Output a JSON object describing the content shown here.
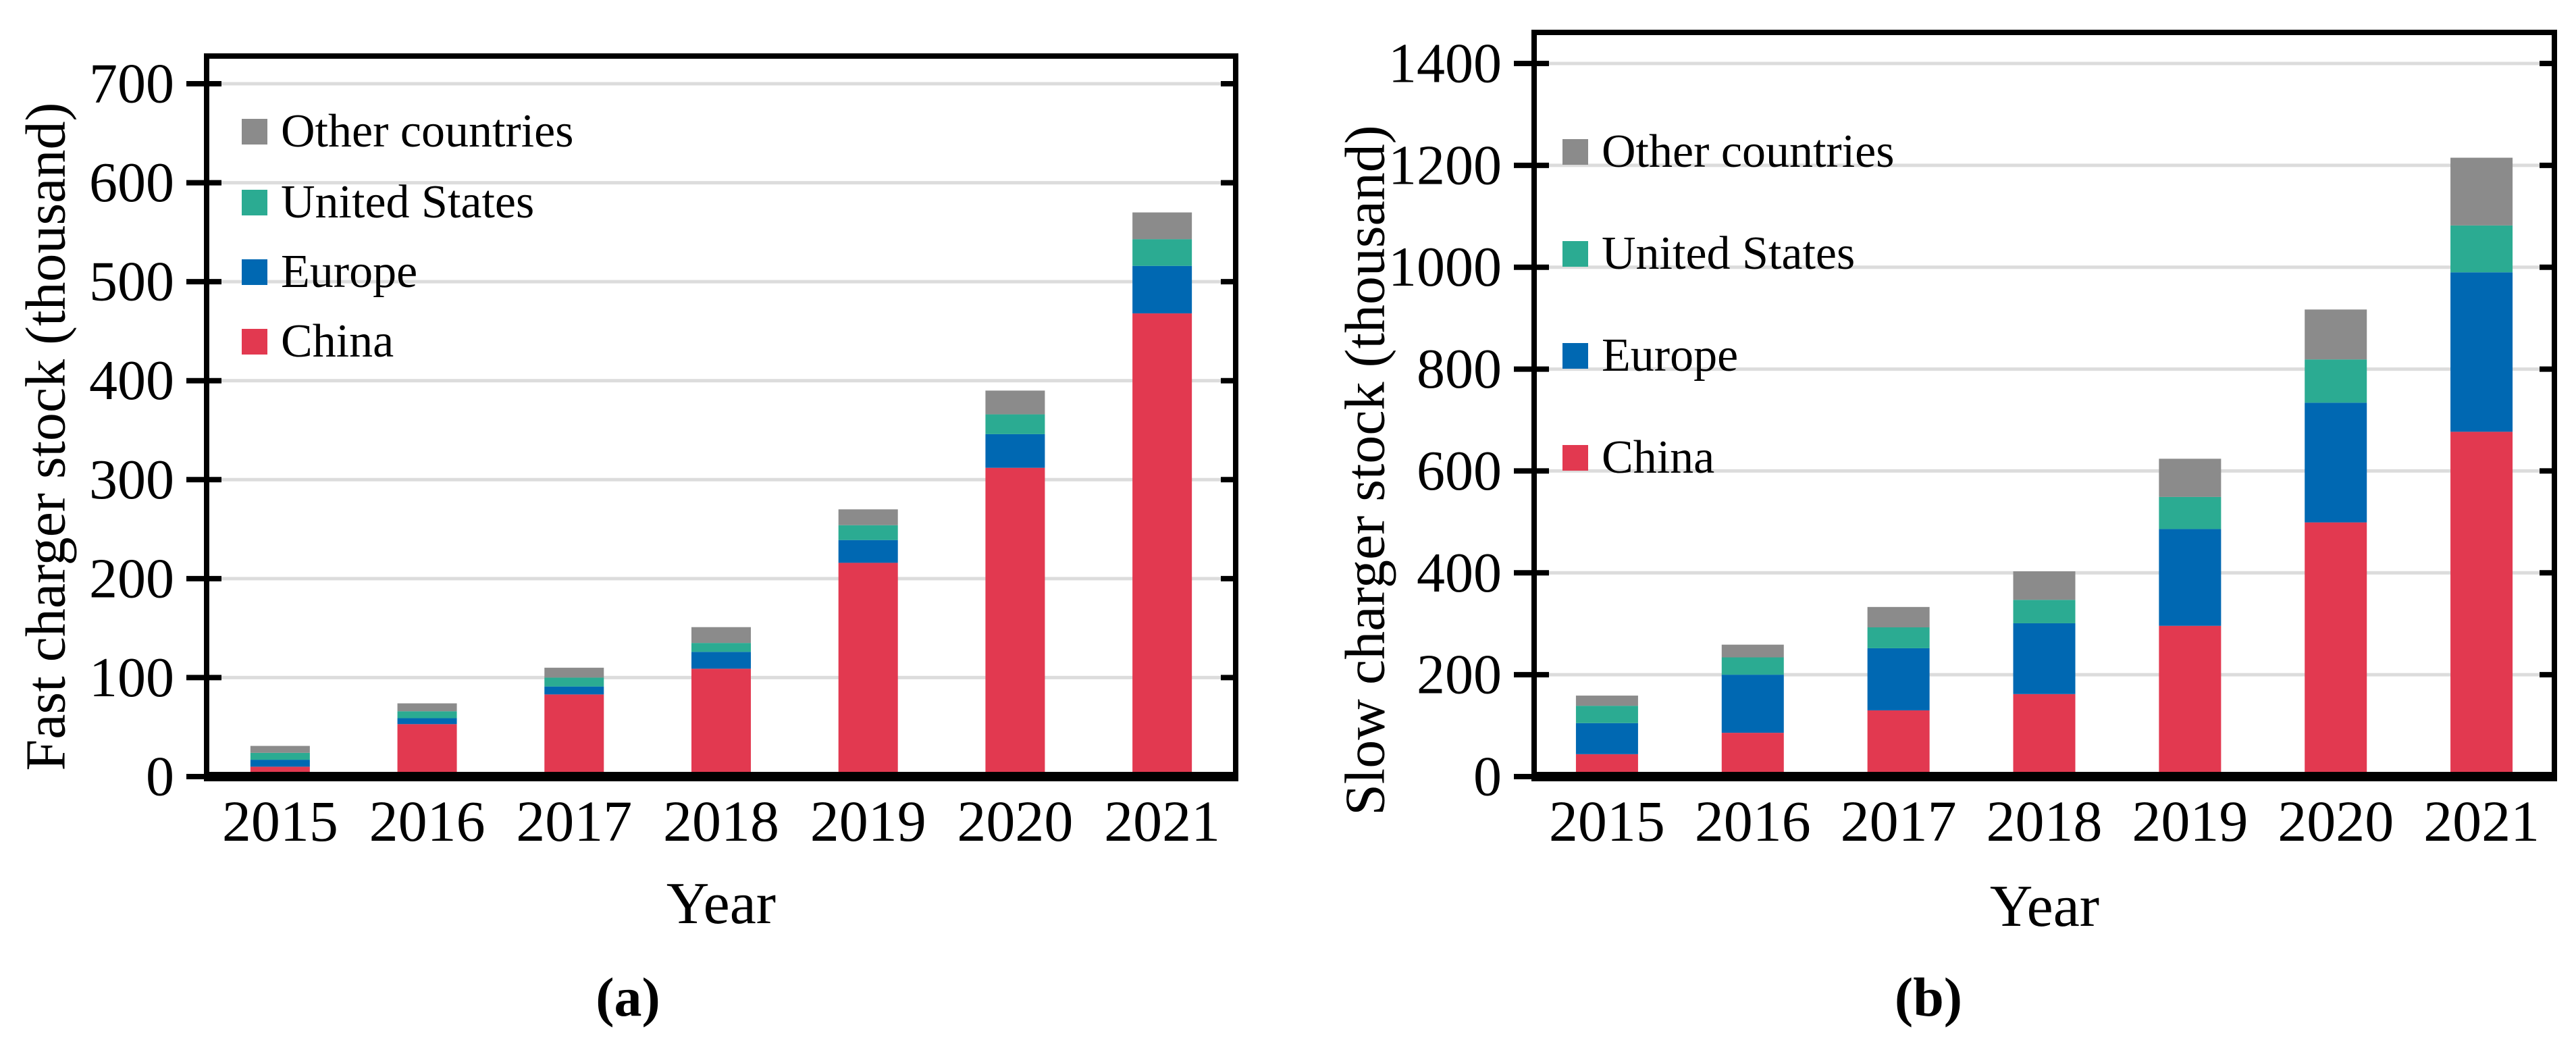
{
  "figure": {
    "captions": {
      "a": "(a)",
      "b": "(b)"
    }
  },
  "legend": {
    "items": [
      {
        "label": "Other countries",
        "key": "other",
        "color": "#8B8B8B"
      },
      {
        "label": "United States",
        "key": "us",
        "color": "#2BAB92"
      },
      {
        "label": "Europe",
        "key": "europe",
        "color": "#0068B2"
      },
      {
        "label": "China",
        "key": "china",
        "color": "#E23950"
      }
    ]
  },
  "colors": {
    "china": "#E23950",
    "europe": "#0068B2",
    "united_states": "#2BAB92",
    "other_countries": "#8B8B8B",
    "gridline": "#DCDCDC",
    "axis": "#000000",
    "background": "#FFFFFF"
  },
  "chart_data": [
    {
      "id": "fast",
      "type": "bar",
      "stacked": true,
      "xlabel": "Year",
      "ylabel": "Fast charger stock (thousand)",
      "categories": [
        "2015",
        "2016",
        "2017",
        "2018",
        "2019",
        "2020",
        "2021"
      ],
      "series": [
        {
          "name": "China",
          "color": "#E23950",
          "values": [
            10,
            53,
            83,
            109,
            216,
            312,
            468
          ]
        },
        {
          "name": "Europe",
          "color": "#0068B2",
          "values": [
            7,
            6,
            8,
            17,
            23,
            34,
            48
          ]
        },
        {
          "name": "United States",
          "color": "#2BAB92",
          "values": [
            7,
            7,
            9,
            9,
            15,
            20,
            27
          ]
        },
        {
          "name": "Other countries",
          "color": "#8B8B8B",
          "values": [
            7,
            8,
            10,
            16,
            16,
            24,
            27
          ]
        }
      ],
      "totals": [
        31,
        74,
        110,
        151,
        270,
        390,
        570
      ],
      "ylim": [
        0,
        728
      ],
      "yticks": [
        0,
        100,
        200,
        300,
        400,
        500,
        600,
        700
      ],
      "grid": true,
      "legend_position": "top-left-inside"
    },
    {
      "id": "slow",
      "type": "bar",
      "stacked": true,
      "xlabel": "Year",
      "ylabel": "Slow charger stock (thousand)",
      "categories": [
        "2015",
        "2016",
        "2017",
        "2018",
        "2019",
        "2020",
        "2021"
      ],
      "series": [
        {
          "name": "China",
          "color": "#E23950",
          "values": [
            44,
            86,
            130,
            162,
            296,
            499,
            677
          ]
        },
        {
          "name": "Europe",
          "color": "#0068B2",
          "values": [
            61,
            114,
            122,
            139,
            190,
            235,
            313
          ]
        },
        {
          "name": "United States",
          "color": "#2BAB92",
          "values": [
            34,
            34,
            41,
            46,
            63,
            85,
            92
          ]
        },
        {
          "name": "Other countries",
          "color": "#8B8B8B",
          "values": [
            20,
            25,
            40,
            56,
            75,
            98,
            133
          ]
        }
      ],
      "totals": [
        159,
        259,
        333,
        403,
        624,
        917,
        1215
      ],
      "ylim": [
        0,
        1461
      ],
      "yticks": [
        0,
        200,
        400,
        600,
        800,
        1000,
        1200,
        1400
      ],
      "grid": true,
      "legend_position": "top-left-inside"
    }
  ]
}
